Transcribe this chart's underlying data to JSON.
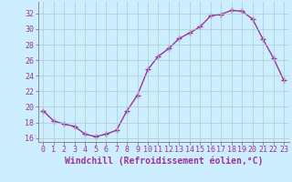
{
  "x": [
    0,
    1,
    2,
    3,
    4,
    5,
    6,
    7,
    8,
    9,
    10,
    11,
    12,
    13,
    14,
    15,
    16,
    17,
    18,
    19,
    20,
    21,
    22,
    23
  ],
  "y": [
    19.5,
    18.2,
    17.8,
    17.5,
    16.5,
    16.2,
    16.5,
    17.0,
    19.5,
    21.5,
    24.8,
    26.5,
    27.5,
    28.8,
    29.5,
    30.3,
    31.7,
    31.9,
    32.4,
    32.3,
    31.3,
    28.7,
    26.3,
    23.4
  ],
  "line_color": "#993399",
  "marker": "+",
  "marker_size": 4,
  "background_color": "#cceeff",
  "grid_color": "#aacccc",
  "xlabel": "Windchill (Refroidissement éolien,°C)",
  "xlim": [
    -0.5,
    23.5
  ],
  "ylim": [
    15.5,
    33.5
  ],
  "yticks": [
    16,
    18,
    20,
    22,
    24,
    26,
    28,
    30,
    32
  ],
  "xticks": [
    0,
    1,
    2,
    3,
    4,
    5,
    6,
    7,
    8,
    9,
    10,
    11,
    12,
    13,
    14,
    15,
    16,
    17,
    18,
    19,
    20,
    21,
    22,
    23
  ],
  "tick_color": "#993399",
  "tick_label_fontsize": 6.0,
  "xlabel_fontsize": 7.0,
  "line_width": 1.0
}
